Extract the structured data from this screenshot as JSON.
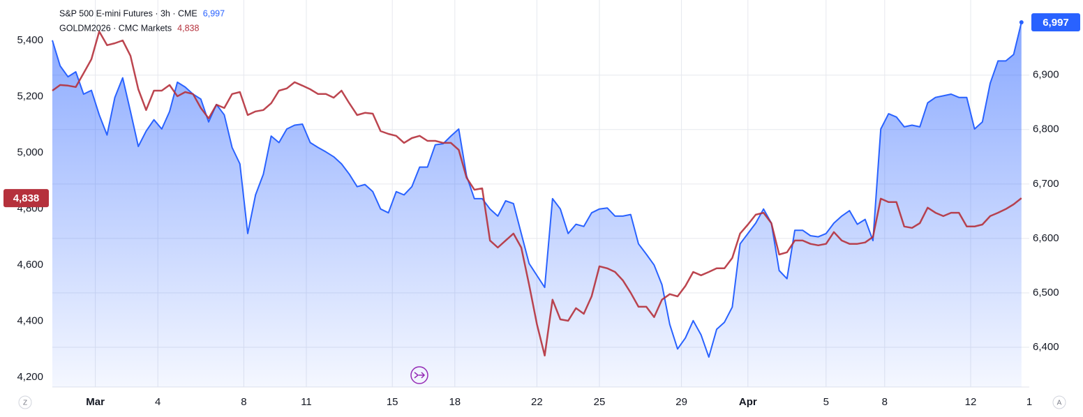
{
  "chart_data": {
    "type": "line",
    "x": [
      0,
      2,
      4,
      6,
      8,
      10,
      12,
      14,
      16,
      18,
      20,
      22,
      24,
      26,
      28,
      30,
      32,
      34,
      36,
      38,
      40,
      42,
      44,
      46,
      48,
      50,
      52,
      54,
      56,
      58,
      60,
      62,
      64,
      66,
      68,
      70,
      72,
      74,
      76,
      78,
      80,
      82,
      84,
      86,
      88,
      90,
      92,
      94,
      96,
      98,
      100,
      102,
      104,
      106,
      108,
      110,
      112,
      114,
      116,
      118,
      120,
      122,
      124,
      126,
      128,
      130,
      132,
      134,
      136,
      138,
      140,
      142,
      144,
      146,
      148,
      150,
      152,
      154,
      156,
      158,
      160,
      162,
      164,
      166,
      168,
      170,
      172,
      174,
      176,
      178,
      180,
      182,
      184,
      186,
      188,
      190,
      192,
      194,
      196,
      198,
      200,
      202,
      204,
      206,
      208,
      210,
      212,
      214,
      216,
      218,
      220,
      222,
      224,
      226,
      228,
      230,
      232,
      234,
      236,
      238,
      240,
      242,
      244,
      246,
      248
    ],
    "series": [
      {
        "name": "S&P 500 E-mini Futures · 3h · CME",
        "color": "#2962ff",
        "axis": "y2",
        "fill": true,
        "last_value_label": "6,997",
        "values": [
          6964,
          6917,
          6897,
          6906,
          6865,
          6872,
          6827,
          6790,
          6859,
          6895,
          6833,
          6769,
          6797,
          6818,
          6801,
          6833,
          6887,
          6878,
          6865,
          6856,
          6814,
          6846,
          6827,
          6767,
          6737,
          6609,
          6680,
          6718,
          6788,
          6776,
          6801,
          6808,
          6810,
          6776,
          6767,
          6759,
          6750,
          6737,
          6718,
          6695,
          6699,
          6686,
          6654,
          6647,
          6686,
          6680,
          6695,
          6731,
          6731,
          6772,
          6774,
          6788,
          6801,
          6715,
          6673,
          6673,
          6654,
          6641,
          6669,
          6664,
          6609,
          6554,
          6532,
          6510,
          6673,
          6654,
          6609,
          6626,
          6622,
          6647,
          6654,
          6656,
          6641,
          6641,
          6644,
          6590,
          6571,
          6551,
          6515,
          6442,
          6397,
          6417,
          6449,
          6423,
          6382,
          6433,
          6446,
          6474,
          6590,
          6609,
          6628,
          6654,
          6628,
          6541,
          6526,
          6615,
          6615,
          6605,
          6603,
          6609,
          6628,
          6641,
          6651,
          6626,
          6635,
          6596,
          6801,
          6829,
          6823,
          6805,
          6808,
          6805,
          6849,
          6859,
          6862,
          6865,
          6859,
          6859,
          6801,
          6814,
          6885,
          6926,
          6926,
          6938,
          6997
        ]
      },
      {
        "name": "GOLDM2026 · CMC Markets",
        "color": "#b5313c",
        "axis": "y",
        "fill": false,
        "last_value_label": "4,838",
        "values": [
          5221,
          5241,
          5239,
          5234,
          5283,
          5333,
          5432,
          5383,
          5390,
          5400,
          5345,
          5226,
          5152,
          5221,
          5221,
          5241,
          5201,
          5216,
          5209,
          5159,
          5122,
          5171,
          5159,
          5209,
          5216,
          5134,
          5147,
          5152,
          5176,
          5221,
          5229,
          5251,
          5239,
          5226,
          5209,
          5209,
          5196,
          5221,
          5176,
          5134,
          5142,
          5139,
          5077,
          5067,
          5060,
          5035,
          5052,
          5060,
          5042,
          5042,
          5035,
          5035,
          5010,
          4911,
          4868,
          4873,
          4687,
          4662,
          4687,
          4712,
          4662,
          4530,
          4389,
          4277,
          4476,
          4406,
          4401,
          4446,
          4426,
          4488,
          4595,
          4588,
          4575,
          4545,
          4501,
          4451,
          4451,
          4414,
          4476,
          4496,
          4488,
          4525,
          4575,
          4563,
          4575,
          4588,
          4588,
          4625,
          4712,
          4744,
          4779,
          4786,
          4749,
          4637,
          4645,
          4687,
          4687,
          4675,
          4670,
          4675,
          4717,
          4687,
          4675,
          4675,
          4680,
          4700,
          4836,
          4824,
          4824,
          4737,
          4732,
          4749,
          4804,
          4786,
          4774,
          4786,
          4786,
          4737,
          4737,
          4744,
          4774,
          4786,
          4799,
          4816,
          4838
        ]
      }
    ],
    "xlim": [
      0,
      250
    ],
    "xticks": [
      {
        "value": 11,
        "label": "Mar"
      },
      {
        "value": 27,
        "label": "4"
      },
      {
        "value": 49,
        "label": "8"
      },
      {
        "value": 65,
        "label": "11"
      },
      {
        "value": 87,
        "label": "15"
      },
      {
        "value": 103,
        "label": "18"
      },
      {
        "value": 124,
        "label": "22"
      },
      {
        "value": 140,
        "label": "25"
      },
      {
        "value": 161,
        "label": "29"
      },
      {
        "value": 178,
        "label": "Apr"
      },
      {
        "value": 198,
        "label": "5"
      },
      {
        "value": 213,
        "label": "8"
      },
      {
        "value": 235,
        "label": "12"
      },
      {
        "value": 250,
        "label": "1"
      }
    ],
    "ylim": [
      4165,
      5544
    ],
    "yticks": [
      {
        "value": 4200,
        "label": "4,200"
      },
      {
        "value": 4400,
        "label": "4,400"
      },
      {
        "value": 4600,
        "label": "4,600"
      },
      {
        "value": 4800,
        "label": "4,800"
      },
      {
        "value": 5000,
        "label": "5,000"
      },
      {
        "value": 5200,
        "label": "5,200"
      },
      {
        "value": 5400,
        "label": "5,400"
      }
    ],
    "y2lim": [
      6327,
      7038
    ],
    "y2ticks": [
      {
        "value": 6400,
        "label": "6,400"
      },
      {
        "value": 6500,
        "label": "6,500"
      },
      {
        "value": 6600,
        "label": "6,600"
      },
      {
        "value": 6700,
        "label": "6,700"
      },
      {
        "value": 6800,
        "label": "6,800"
      },
      {
        "value": 6900,
        "label": "6,900"
      }
    ],
    "grid": true
  },
  "controls": {
    "left": "Z",
    "right": "A"
  }
}
